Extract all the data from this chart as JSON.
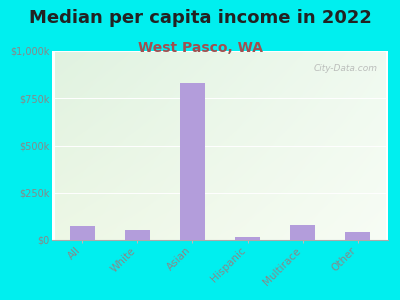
{
  "title": "Median per capita income in 2022",
  "subtitle": "West Pasco, WA",
  "categories": [
    "All",
    "White",
    "Asian",
    "Hispanic",
    "Multirace",
    "Other"
  ],
  "values": [
    75000,
    55000,
    830000,
    18000,
    80000,
    42000
  ],
  "bar_color": "#b39ddb",
  "background_color": "#00EFEF",
  "title_fontsize": 13,
  "subtitle_fontsize": 10,
  "tick_label_color": "#888888",
  "title_color": "#222222",
  "subtitle_color": "#a05050",
  "ylim": [
    0,
    1000000
  ],
  "yticks": [
    0,
    250000,
    500000,
    750000,
    1000000
  ],
  "ytick_labels": [
    "$0",
    "$250k",
    "$500k",
    "$750k",
    "$1,000k"
  ],
  "watermark": "City-Data.com"
}
